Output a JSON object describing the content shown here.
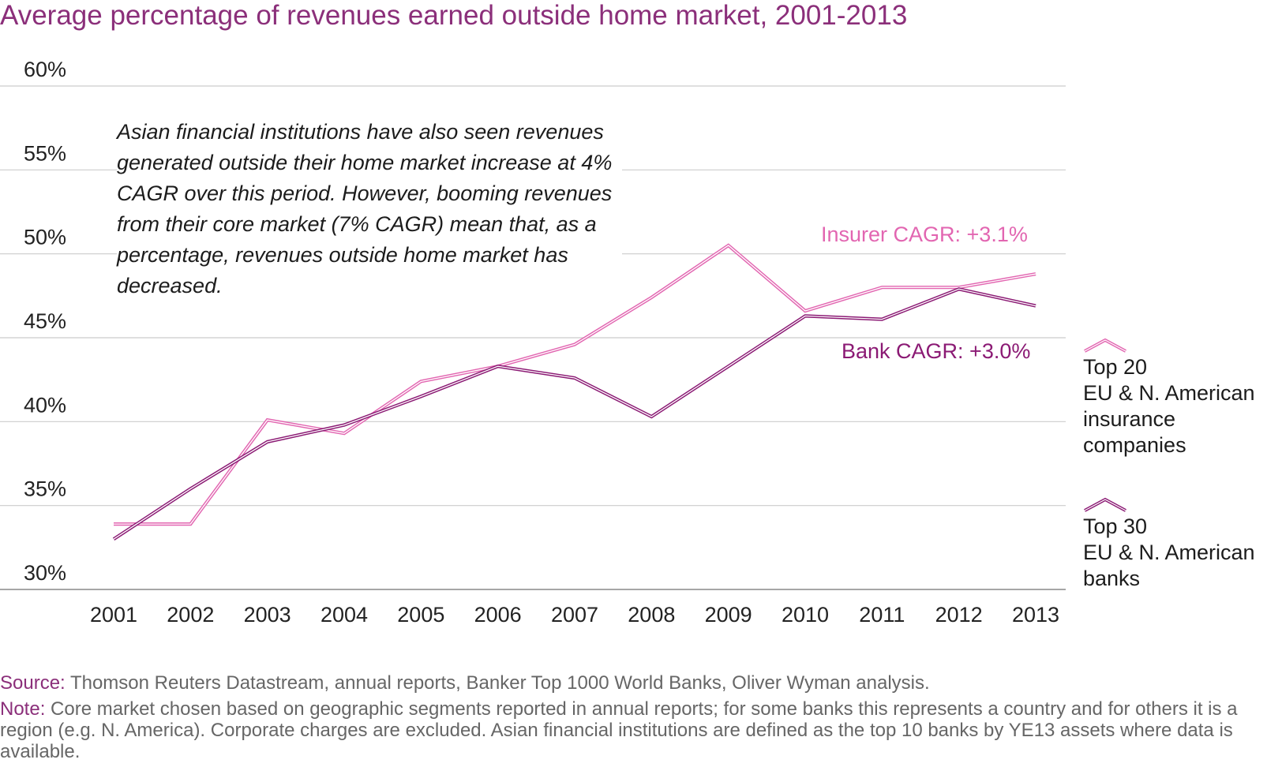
{
  "title": "Average percentage of revenues earned outside home market, 2001-2013",
  "annotation": "Asian financial institutions have also seen revenues generated outside their home market increase at 4% CAGR over this period. However, booming revenues from their core market (7% CAGR) mean that, as a percentage, revenues outside home market has decreased.",
  "cagr_labels": {
    "insurer": "Insurer CAGR: +3.1%",
    "bank": "Bank CAGR: +3.0%"
  },
  "legend": {
    "insurance": [
      "Top 20",
      "EU & N. American",
      "insurance",
      "companies"
    ],
    "banks": [
      "Top 30",
      "EU & N. American",
      "banks"
    ]
  },
  "footer": {
    "source_label": "Source:",
    "source_text": "Thomson Reuters Datastream, annual reports, Banker Top 1000 World Banks, Oliver Wyman analysis.",
    "note_label": "Note:",
    "note_text": "Core market chosen based on geographic segments reported in annual reports; for some banks this represents a country and for others it is a region (e.g. N. America). Corporate charges are excluded. Asian financial institutions are defined as the top 10 banks by YE13 assets where data is available."
  },
  "colors": {
    "title": "#8b2f7a",
    "insurer": "#e266b1",
    "bank": "#8b1a74",
    "grid": "#cccccc"
  },
  "chart_data": {
    "type": "line",
    "title": "Average percentage of revenues earned outside home market, 2001-2013",
    "xlabel": "",
    "ylabel": "",
    "ylim": [
      30,
      60
    ],
    "yticks": [
      "30%",
      "35%",
      "40%",
      "45%",
      "50%",
      "55%",
      "60%"
    ],
    "ytick_values": [
      30,
      35,
      40,
      45,
      50,
      55,
      60
    ],
    "x": [
      "2001",
      "2002",
      "2003",
      "2004",
      "2005",
      "2006",
      "2007",
      "2008",
      "2009",
      "2010",
      "2011",
      "2012",
      "2013"
    ],
    "series": [
      {
        "name": "Top 20 EU & N. American insurance companies",
        "key": "insurer",
        "values": [
          33.9,
          33.9,
          40.1,
          39.3,
          42.4,
          43.3,
          44.6,
          47.4,
          50.5,
          46.6,
          48.0,
          48.0,
          48.8
        ]
      },
      {
        "name": "Top 30 EU & N. American banks",
        "key": "bank",
        "values": [
          33.0,
          36.0,
          38.8,
          39.8,
          41.5,
          43.3,
          42.6,
          40.3,
          43.3,
          46.3,
          46.1,
          47.9,
          46.9
        ]
      }
    ]
  }
}
